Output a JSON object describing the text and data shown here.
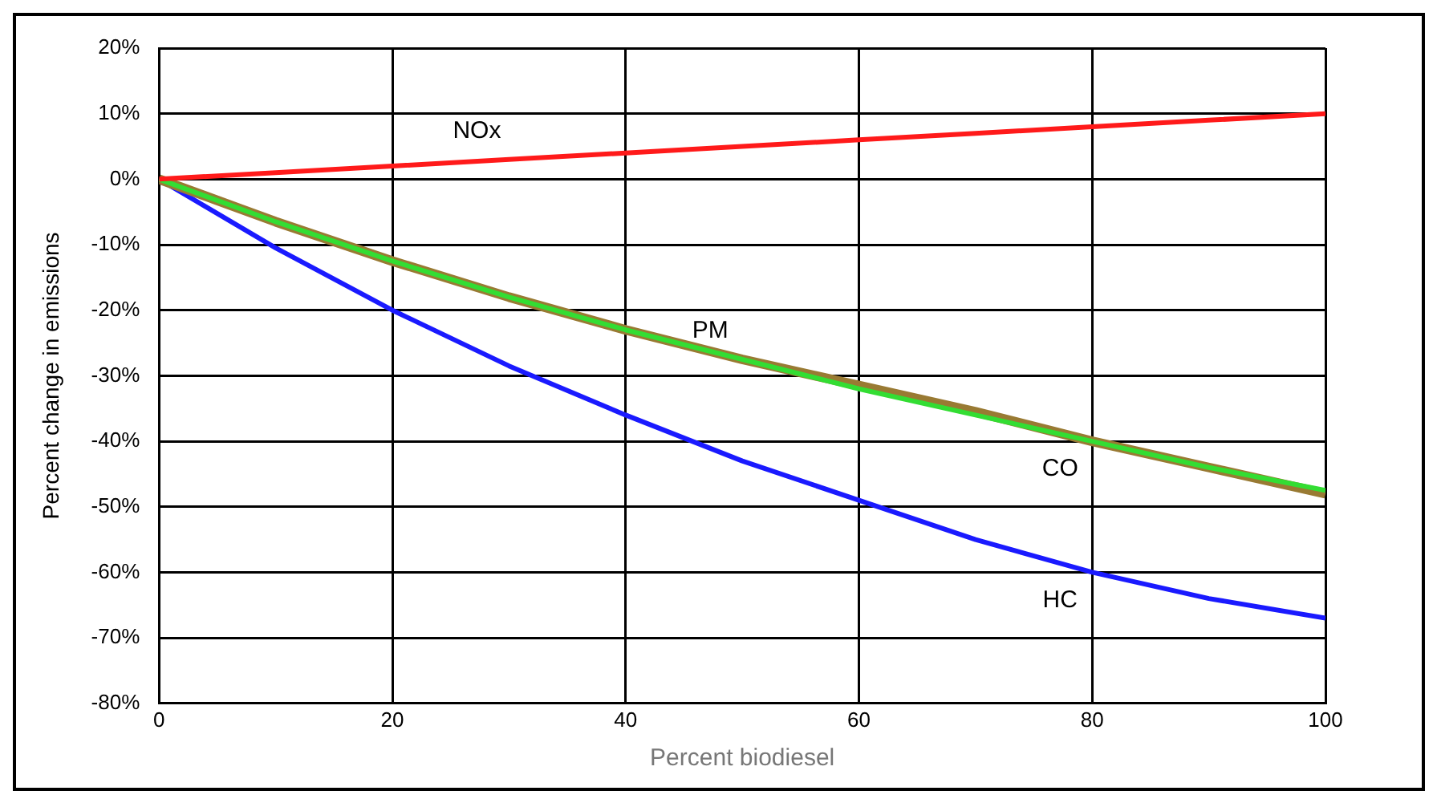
{
  "chart_data": {
    "type": "line",
    "xlabel": "Percent biodiesel",
    "ylabel": "Percent change in emissions",
    "x": [
      0,
      10,
      20,
      30,
      40,
      50,
      60,
      70,
      80,
      90,
      100
    ],
    "series": [
      {
        "name": "NOx",
        "color": "#ff1a1a",
        "values": [
          0,
          1,
          2,
          3,
          4,
          5,
          6,
          7,
          8,
          9,
          10
        ]
      },
      {
        "name": "PM",
        "color": "#33dd33",
        "values": [
          0,
          -6.5,
          -12.5,
          -18,
          -23,
          -27.5,
          -32,
          -36,
          -40,
          -44,
          -47.5
        ]
      },
      {
        "name": "CO",
        "color": "#997a33",
        "values": [
          0,
          -6.5,
          -12.5,
          -18,
          -23,
          -27.5,
          -31.5,
          -35.5,
          -40,
          -44,
          -48
        ]
      },
      {
        "name": "HC",
        "color": "#1a1aff",
        "values": [
          0,
          -10.5,
          -20,
          -28.5,
          -36,
          -43,
          -49,
          -55,
          -60,
          -64,
          -67
        ]
      }
    ],
    "xlim": [
      0,
      100
    ],
    "xticks": [
      0,
      20,
      40,
      60,
      80,
      100
    ],
    "ylim": [
      -80,
      20
    ],
    "yticks": [
      {
        "value": -80,
        "label": "-80%"
      },
      {
        "value": -70,
        "label": "-70%"
      },
      {
        "value": -60,
        "label": "-60%"
      },
      {
        "value": -50,
        "label": "-50%"
      },
      {
        "value": -40,
        "label": "-40%"
      },
      {
        "value": -30,
        "label": "-30%"
      },
      {
        "value": -20,
        "label": "-20%"
      },
      {
        "value": -10,
        "label": "-10%"
      },
      {
        "value": 0,
        "label": "0%"
      },
      {
        "value": 10,
        "label": "10%"
      },
      {
        "value": 20,
        "label": "20%"
      }
    ],
    "grid": true,
    "legend": false,
    "marker": "none",
    "line_style": "solid"
  }
}
